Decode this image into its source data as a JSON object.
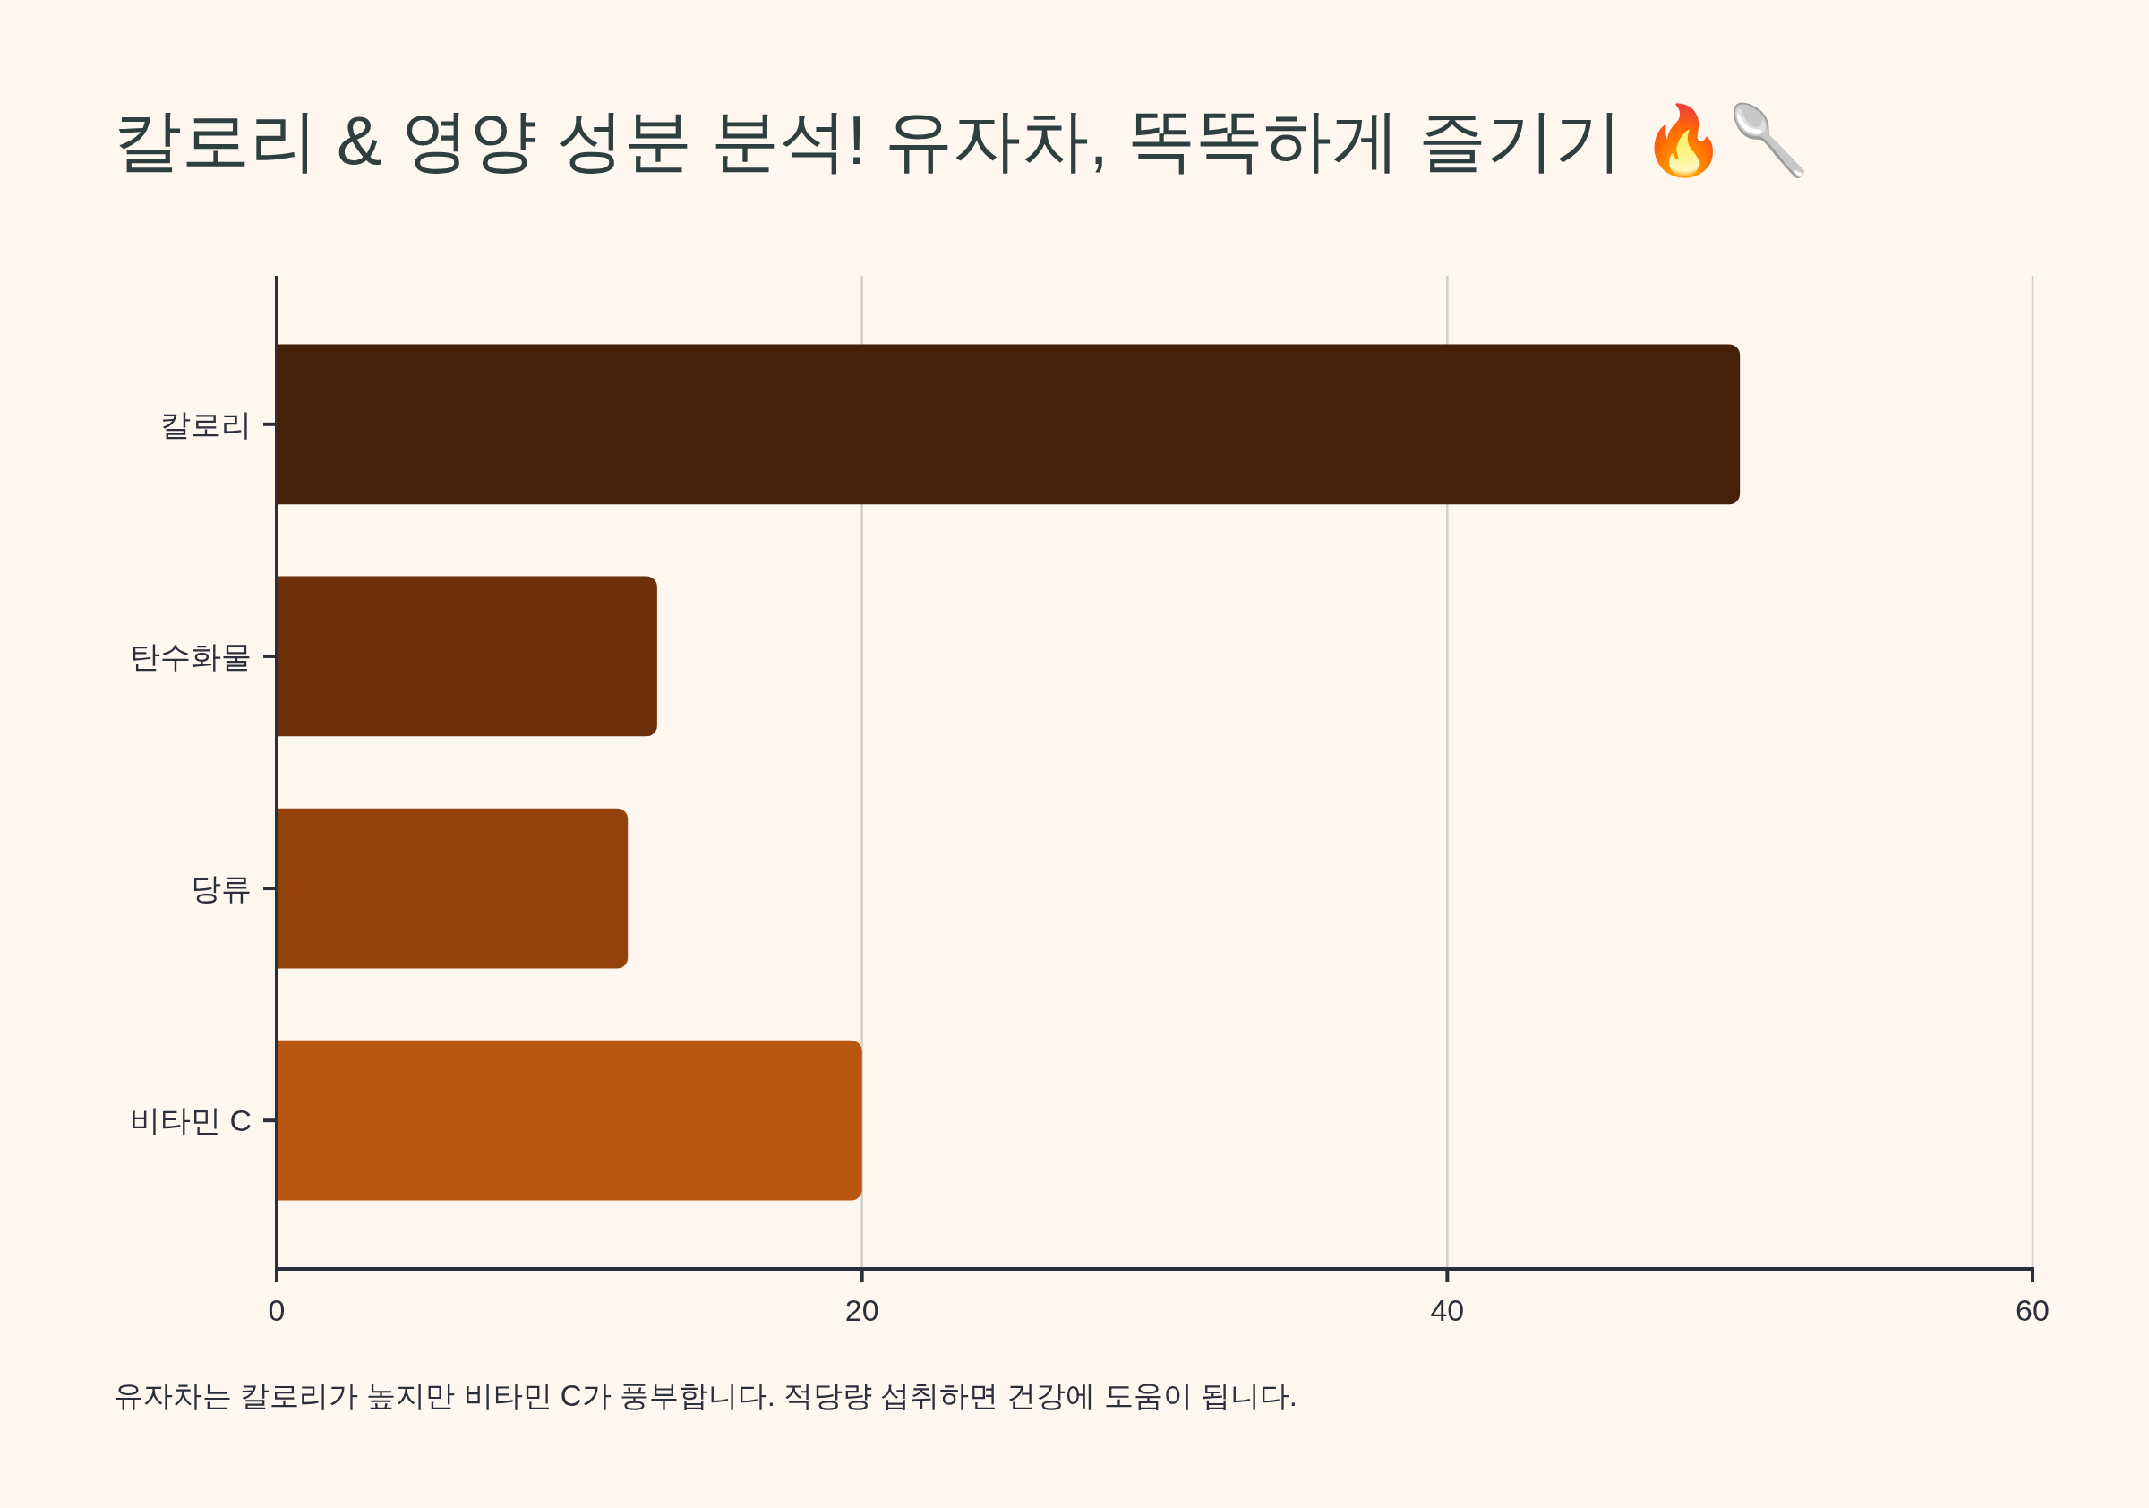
{
  "chart_data": {
    "type": "bar",
    "orientation": "horizontal",
    "title": "칼로리 & 영양 성분 분석! 유자차, 똑똑하게 즐기기 🔥🥄",
    "categories": [
      "칼로리",
      "탄수화물",
      "당류",
      "비타민 C"
    ],
    "values": [
      50,
      13,
      12,
      20
    ],
    "colors": [
      "#46210a",
      "#6c300b",
      "#94420c",
      "#b9560f"
    ],
    "xlim": [
      0,
      60
    ],
    "xticks": [
      0,
      20,
      40,
      60
    ],
    "grid": "x",
    "annotations": [
      "유자차는 칼로리가 높지만 비타민 C가 풍부합니다. 적당량 섭취하면 건강에 도움이 됩니다."
    ]
  }
}
